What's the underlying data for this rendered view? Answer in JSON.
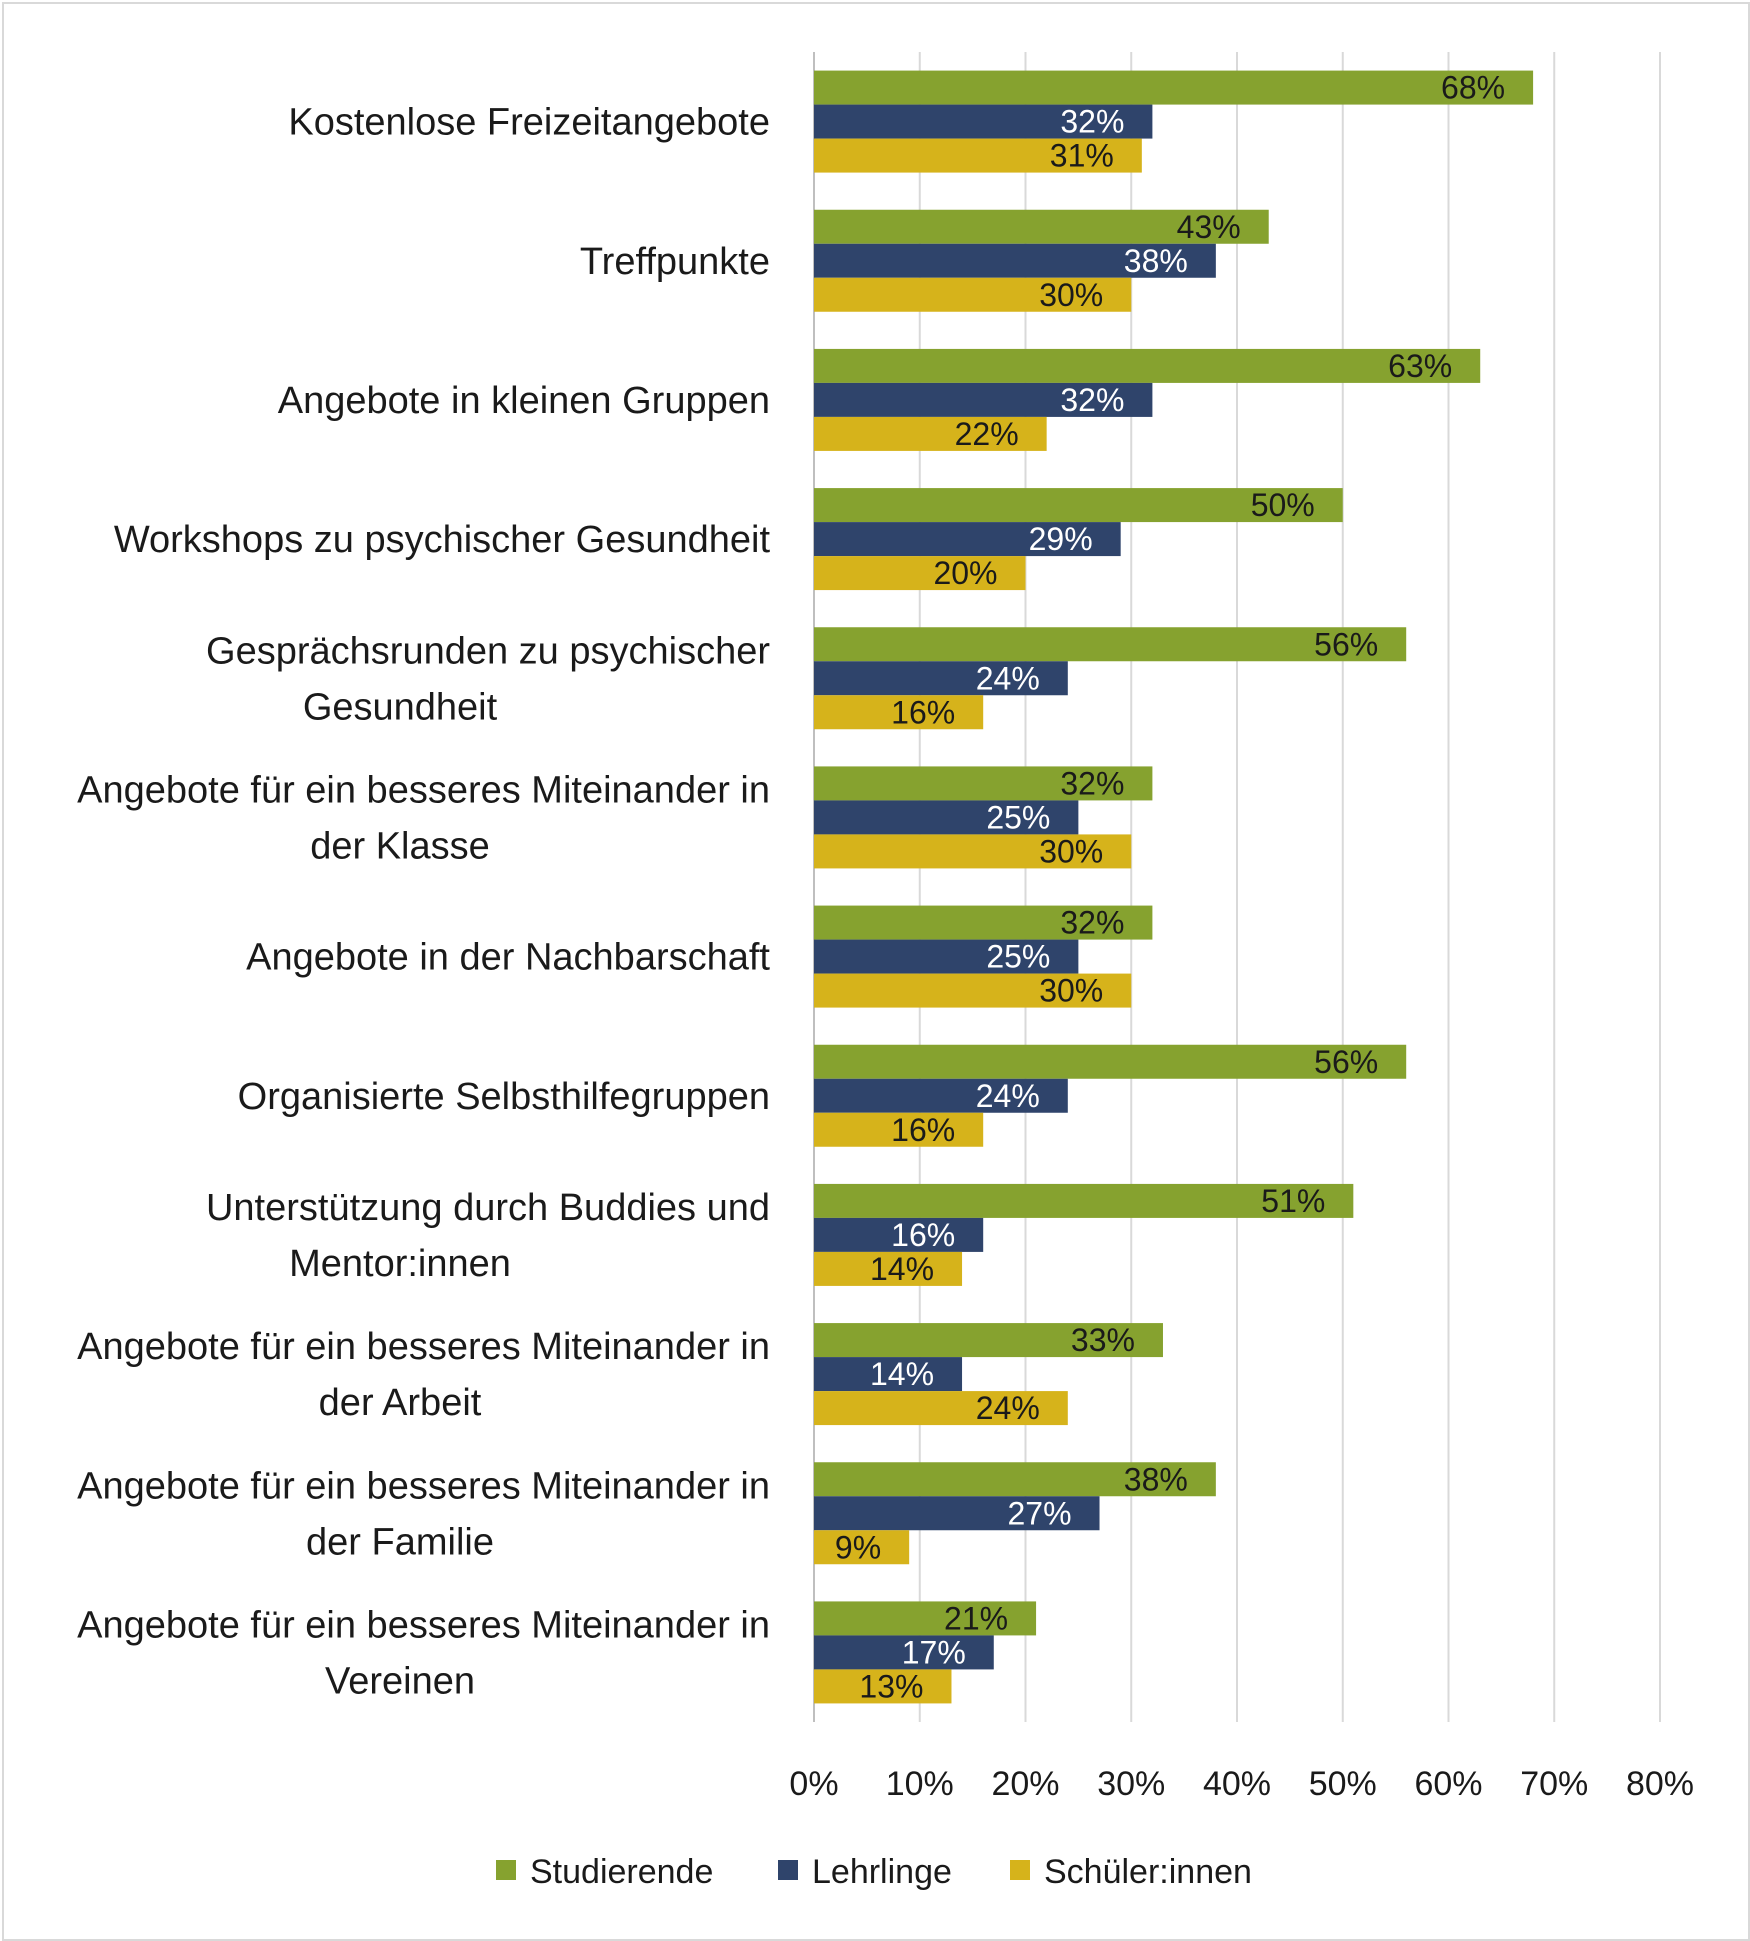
{
  "chart_data": {
    "type": "bar",
    "orientation": "horizontal",
    "title": "",
    "xlabel": "",
    "ylabel": "",
    "xlim": [
      0,
      80
    ],
    "x_ticks": [
      "0%",
      "10%",
      "20%",
      "30%",
      "40%",
      "50%",
      "60%",
      "70%",
      "80%"
    ],
    "grid": "vertical",
    "legend_position": "bottom",
    "categories": [
      [
        "Kostenlose Freizeitangebote"
      ],
      [
        "Treffpunkte"
      ],
      [
        "Angebote in kleinen Gruppen"
      ],
      [
        "Workshops zu psychischer Gesundheit"
      ],
      [
        "Gesprächsrunden zu psychischer",
        "Gesundheit"
      ],
      [
        "Angebote für ein besseres Miteinander in",
        "der Klasse"
      ],
      [
        "Angebote in der Nachbarschaft"
      ],
      [
        "Organisierte Selbsthilfegruppen"
      ],
      [
        "Unterstützung durch Buddies und",
        "Mentor:innen"
      ],
      [
        "Angebote für ein besseres Miteinander in",
        "der Arbeit"
      ],
      [
        "Angebote für ein besseres Miteinander in",
        "der Familie"
      ],
      [
        "Angebote für ein besseres Miteinander in",
        "Vereinen"
      ]
    ],
    "series": [
      {
        "name": "Studierende",
        "color": "#86a22f",
        "label_color": "#1a1a1a",
        "values": [
          68,
          43,
          63,
          50,
          56,
          32,
          32,
          56,
          51,
          33,
          38,
          21
        ],
        "labels": [
          "68%",
          "43%",
          "63%",
          "50%",
          "56%",
          "32%",
          "32%",
          "56%",
          "51%",
          "33%",
          "38%",
          "21%"
        ]
      },
      {
        "name": "Lehrlinge",
        "color": "#2f446b",
        "label_color": "#ffffff",
        "values": [
          32,
          38,
          32,
          29,
          24,
          25,
          25,
          24,
          16,
          14,
          27,
          17
        ],
        "labels": [
          "32%",
          "38%",
          "32%",
          "29%",
          "24%",
          "25%",
          "25%",
          "24%",
          "16%",
          "14%",
          "27%",
          "17%"
        ]
      },
      {
        "name": "Schüler:innen",
        "color": "#d6b31b",
        "label_color": "#1a1a1a",
        "values": [
          31,
          30,
          22,
          20,
          16,
          30,
          30,
          16,
          14,
          24,
          9,
          13
        ],
        "labels": [
          "31%",
          "30%",
          "22%",
          "20%",
          "16%",
          "30%",
          "30%",
          "16%",
          "14%",
          "24%",
          "9%",
          "13%"
        ]
      }
    ]
  }
}
